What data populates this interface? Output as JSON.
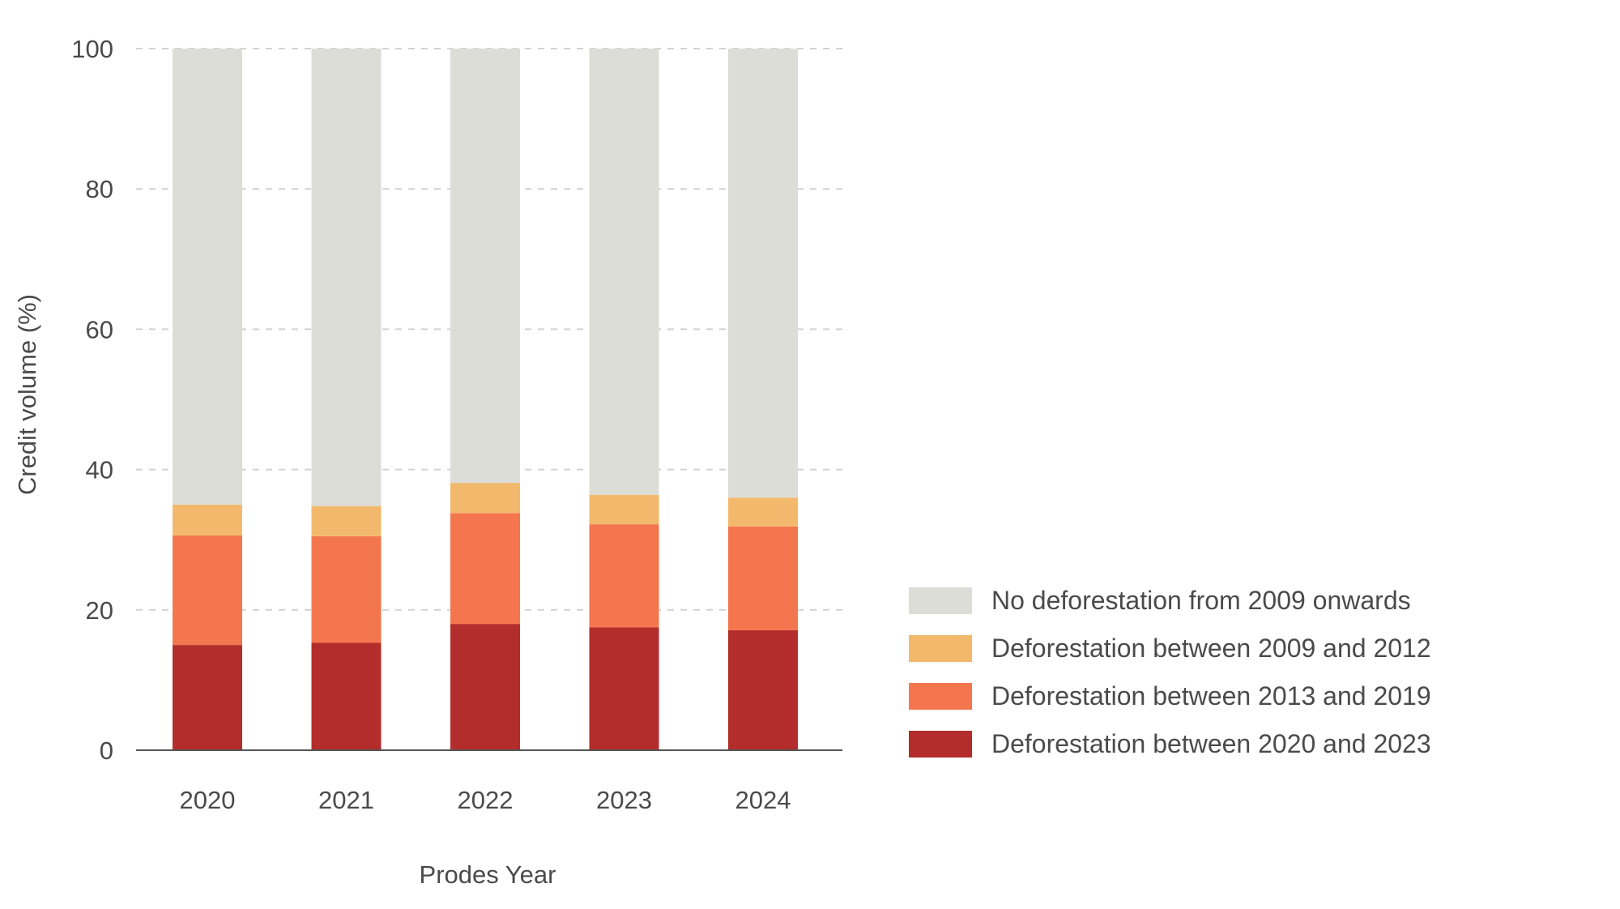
{
  "chart_data": {
    "type": "bar",
    "stacked": true,
    "categories": [
      "2020",
      "2021",
      "2022",
      "2023",
      "2024"
    ],
    "series": [
      {
        "name": "Deforestation between 2020 and 2023",
        "color": "#b22d2b",
        "values": [
          15.0,
          15.3,
          18.0,
          17.5,
          17.1
        ]
      },
      {
        "name": "Deforestation between 2013 and 2019",
        "color": "#f4764f",
        "values": [
          15.6,
          15.2,
          15.8,
          14.7,
          14.8
        ]
      },
      {
        "name": "Deforestation between 2009 and 2012",
        "color": "#f2b96c",
        "values": [
          4.4,
          4.3,
          4.3,
          4.2,
          4.1
        ]
      },
      {
        "name": "No deforestation from 2009 onwards",
        "color": "#dcddd7",
        "values": [
          65.0,
          65.2,
          61.9,
          63.6,
          64.0
        ]
      }
    ],
    "xlabel": "Prodes Year",
    "ylabel": "Credit volume (%)",
    "ylim": [
      0,
      100
    ],
    "yticks": [
      0,
      20,
      40,
      60,
      80,
      100
    ],
    "grid": true,
    "legend_position": "right"
  },
  "legend": {
    "items": [
      {
        "label": "No deforestation from 2009 onwards",
        "color": "#dcddd7"
      },
      {
        "label": "Deforestation between 2009 and 2012",
        "color": "#f2b96c"
      },
      {
        "label": "Deforestation between 2013 and 2019",
        "color": "#f4764f"
      },
      {
        "label": "Deforestation between 2020 and 2023",
        "color": "#b22d2b"
      }
    ]
  }
}
